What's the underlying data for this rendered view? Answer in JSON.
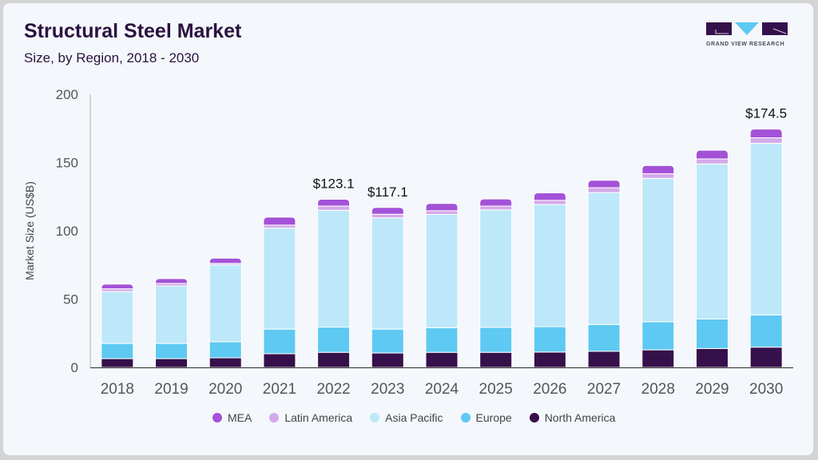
{
  "header": {
    "title": "Structural Steel Market",
    "subtitle": "Size, by Region, 2018 - 2030",
    "brand": "GRAND VIEW RESEARCH"
  },
  "colors": {
    "MEA": "#a352d8",
    "Latin America": "#d4a9ea",
    "Asia Pacific": "#bde8f9",
    "Europe": "#5ec9f2",
    "North America": "#36104b"
  },
  "chart_data": {
    "type": "bar",
    "stacked": true,
    "title": "Structural Steel Market",
    "subtitle": "Size, by Region, 2018 - 2030",
    "xlabel": "",
    "ylabel": "Market Size (US$B)",
    "ylim": [
      0,
      200
    ],
    "yticks": [
      0,
      50,
      100,
      150,
      200
    ],
    "grid": false,
    "legend_position": "bottom",
    "categories": [
      "2018",
      "2019",
      "2020",
      "2021",
      "2022",
      "2023",
      "2024",
      "2025",
      "2026",
      "2027",
      "2028",
      "2029",
      "2030"
    ],
    "series": [
      {
        "name": "North America",
        "values": [
          6.4,
          6.4,
          7.0,
          10.0,
          11.0,
          10.5,
          11.0,
          11.0,
          11.2,
          11.8,
          12.8,
          13.8,
          14.8
        ]
      },
      {
        "name": "Europe",
        "values": [
          11.1,
          11.1,
          11.7,
          18.0,
          18.5,
          17.5,
          18.0,
          18.3,
          18.6,
          19.6,
          20.6,
          21.7,
          23.6
        ]
      },
      {
        "name": "Asia Pacific",
        "values": [
          38.0,
          42.1,
          56.3,
          74.0,
          85.5,
          81.5,
          83.0,
          86.0,
          89.5,
          96.6,
          105.0,
          113.5,
          125.7
        ]
      },
      {
        "name": "Latin America",
        "values": [
          2.0,
          1.9,
          1.2,
          2.2,
          3.1,
          2.6,
          2.7,
          2.8,
          3.0,
          3.6,
          3.4,
          3.6,
          4.0
        ]
      },
      {
        "name": "MEA",
        "values": [
          3.5,
          3.5,
          3.8,
          5.8,
          5.0,
          5.0,
          5.3,
          5.2,
          5.5,
          5.4,
          6.0,
          6.4,
          6.4
        ]
      }
    ],
    "annotations": [
      {
        "category": "2022",
        "label": "$123.1"
      },
      {
        "category": "2023",
        "label": "$117.1"
      },
      {
        "category": "2030",
        "label": "$174.5"
      }
    ],
    "legend": [
      "MEA",
      "Latin America",
      "Asia Pacific",
      "Europe",
      "North America"
    ]
  }
}
